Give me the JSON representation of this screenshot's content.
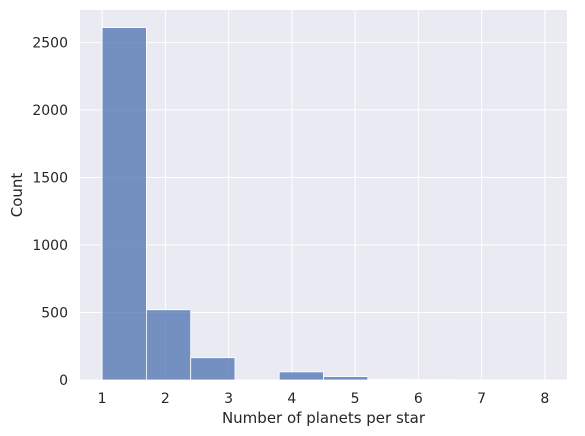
{
  "chart_data": {
    "type": "bar",
    "subtype": "histogram",
    "title": "",
    "xlabel": "Number of planets per star",
    "ylabel": "Count",
    "xlim": [
      0.65,
      8.35
    ],
    "ylim": [
      0,
      2740
    ],
    "xticks": [
      1,
      2,
      3,
      4,
      5,
      6,
      7,
      8
    ],
    "yticks": [
      0,
      500,
      1000,
      1500,
      2000,
      2500
    ],
    "bin_edges": [
      1.0,
      1.7,
      2.4,
      3.1,
      3.8,
      4.5,
      5.2,
      5.9,
      6.6,
      7.3,
      8.0
    ],
    "values": [
      2610,
      520,
      165,
      0,
      60,
      25,
      5,
      3,
      1,
      1
    ],
    "bar_color": "#4c72b0",
    "background_color": "#eaeaf2",
    "grid": true,
    "legend": false
  }
}
